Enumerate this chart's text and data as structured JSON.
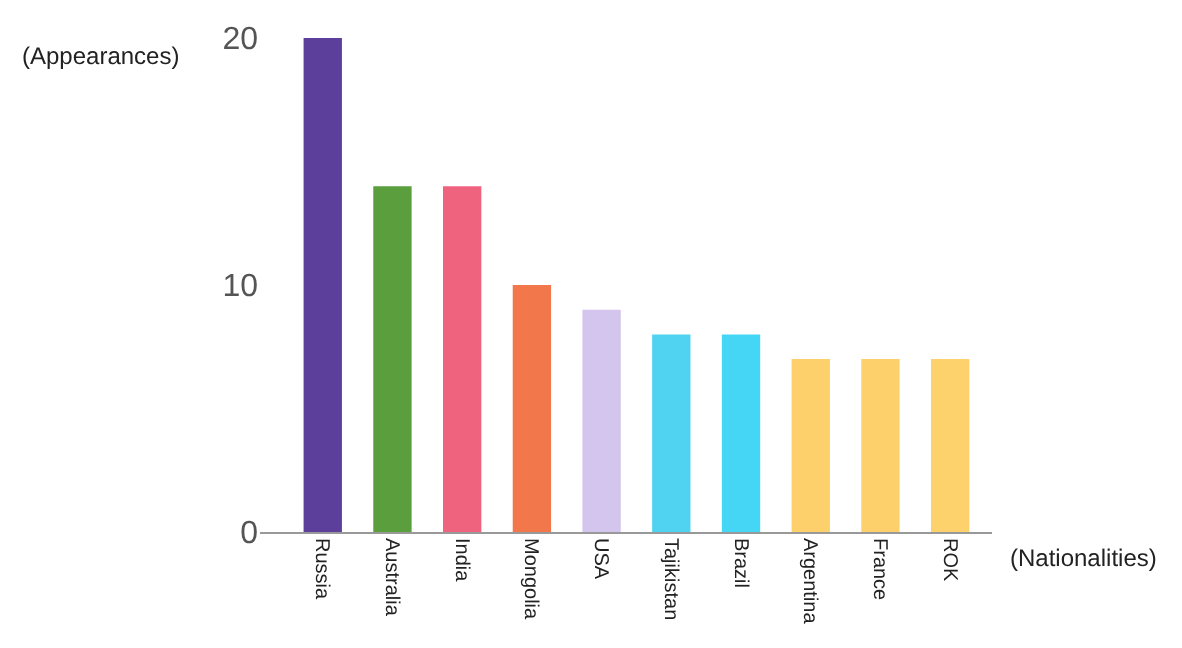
{
  "chart_data": {
    "type": "bar",
    "ylabel": "(Appearances)",
    "xlabel": "(Nationalities)",
    "categories": [
      "Russia",
      "Australia",
      "India",
      "Mongolia",
      "USA",
      "Tajikistan",
      "Brazil",
      "Argentina",
      "France",
      "ROK"
    ],
    "values": [
      20,
      14,
      14,
      10,
      9,
      8,
      8,
      7,
      7,
      7
    ],
    "colors": [
      "#5b3f9a",
      "#5a9e3e",
      "#f0637f",
      "#f2784b",
      "#d4c5ee",
      "#4fd3f0",
      "#45d6f5",
      "#fdd06c",
      "#fdd06c",
      "#fdd26c"
    ],
    "ylim": [
      0,
      20
    ],
    "yticks": [
      0,
      10,
      20
    ]
  }
}
